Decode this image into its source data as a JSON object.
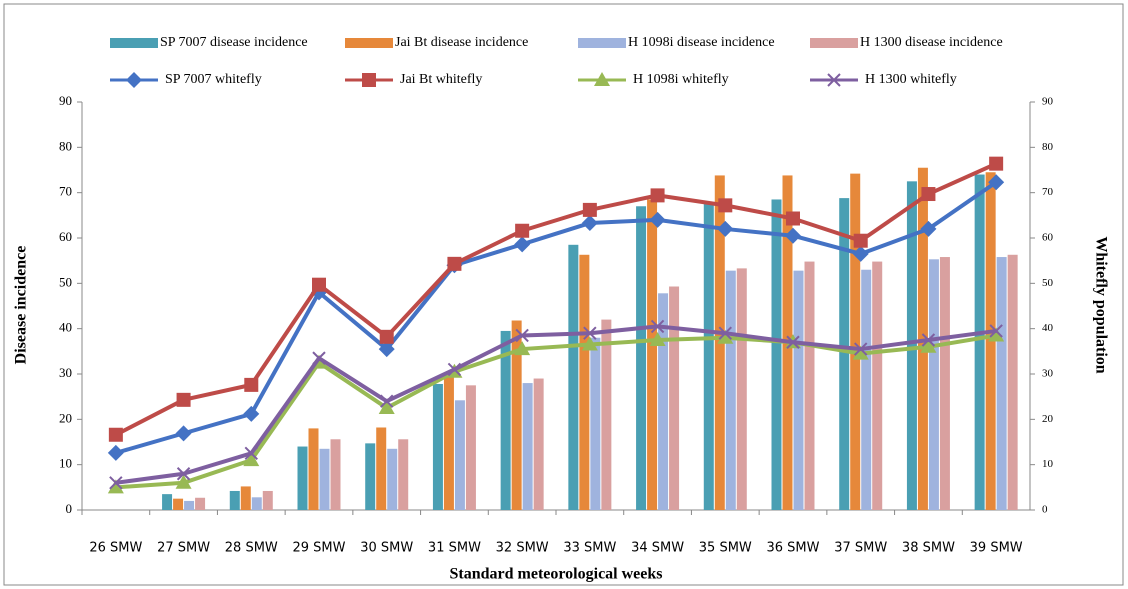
{
  "chart_data": {
    "type": "bar_line",
    "y_label": "Disease incidence",
    "y2_label": "Whitefly population",
    "x_label": "Standard meteorological weeks",
    "categories": [
      "26 SMW",
      "27 SMW",
      "28 SMW",
      "29 SMW",
      "30 SMW",
      "31 SMW",
      "32 SMW",
      "33 SMW",
      "34 SMW",
      "35 SMW",
      "36 SMW",
      "37 SMW",
      "38 SMW",
      "39 SMW"
    ],
    "ylim": [
      0,
      90
    ],
    "yticks": [
      0,
      10,
      20,
      30,
      40,
      50,
      60,
      70,
      80,
      90
    ],
    "y2lim": [
      0,
      90
    ],
    "y2ticks": [
      0,
      10,
      20,
      30,
      40,
      50,
      60,
      70,
      80,
      90
    ],
    "grid": false,
    "legend": "top",
    "series": [
      {
        "name": "SP 7007 disease incidence",
        "kind": "bar",
        "color": "#4a9fb3",
        "values": [
          0,
          3.5,
          4.2,
          14,
          14.7,
          27.8,
          39.5,
          58.5,
          67,
          67.5,
          68.5,
          68.8,
          72.5,
          74
        ]
      },
      {
        "name": "Jai Bt disease incidence",
        "kind": "bar",
        "color": "#e6883a",
        "values": [
          0,
          2.5,
          5.2,
          18,
          18.2,
          30,
          41.8,
          56.3,
          68.5,
          73.8,
          73.8,
          74.2,
          75.5,
          74.5
        ]
      },
      {
        "name": "H 1098i disease incidence",
        "kind": "bar",
        "color": "#9fb3de",
        "values": [
          0,
          2,
          2.8,
          13.5,
          13.5,
          24.2,
          28,
          38,
          47.8,
          52.8,
          52.8,
          53,
          55.3,
          55.8
        ]
      },
      {
        "name": "H 1300 disease incidence",
        "kind": "bar",
        "color": "#d9a09f",
        "values": [
          0,
          2.7,
          4.2,
          15.6,
          15.6,
          27.5,
          29,
          42,
          49.3,
          53.3,
          54.8,
          54.8,
          55.8,
          56.3
        ]
      },
      {
        "name": "SP 7007 whitefly",
        "kind": "line",
        "axis": "y2",
        "marker": "diamond",
        "color": "#4472c4",
        "values": [
          12.6,
          16.9,
          21.2,
          48,
          35.5,
          54,
          58.6,
          63.3,
          64,
          62,
          60.5,
          56.5,
          62,
          72.3
        ]
      },
      {
        "name": "Jai Bt whitefly",
        "kind": "line",
        "axis": "y2",
        "marker": "square",
        "color": "#be4b48",
        "values": [
          16.6,
          24.3,
          27.6,
          49.7,
          38.2,
          54.3,
          61.6,
          66.2,
          69.4,
          67.2,
          64.3,
          59.4,
          69.7,
          76.4
        ]
      },
      {
        "name": "H 1098i whitefly",
        "kind": "line",
        "axis": "y2",
        "marker": "triangle",
        "color": "#98b954",
        "values": [
          5,
          6,
          11,
          32.5,
          22.5,
          30.5,
          35.5,
          36.5,
          37.5,
          38,
          37,
          34.5,
          36,
          38.5
        ]
      },
      {
        "name": "H 1300 whitefly",
        "kind": "line",
        "axis": "y2",
        "marker": "x",
        "color": "#7e5fa0",
        "values": [
          6,
          8,
          12.5,
          33.5,
          24,
          31,
          38.5,
          39,
          40.5,
          39,
          37,
          35.5,
          37.5,
          39.5
        ]
      }
    ]
  }
}
